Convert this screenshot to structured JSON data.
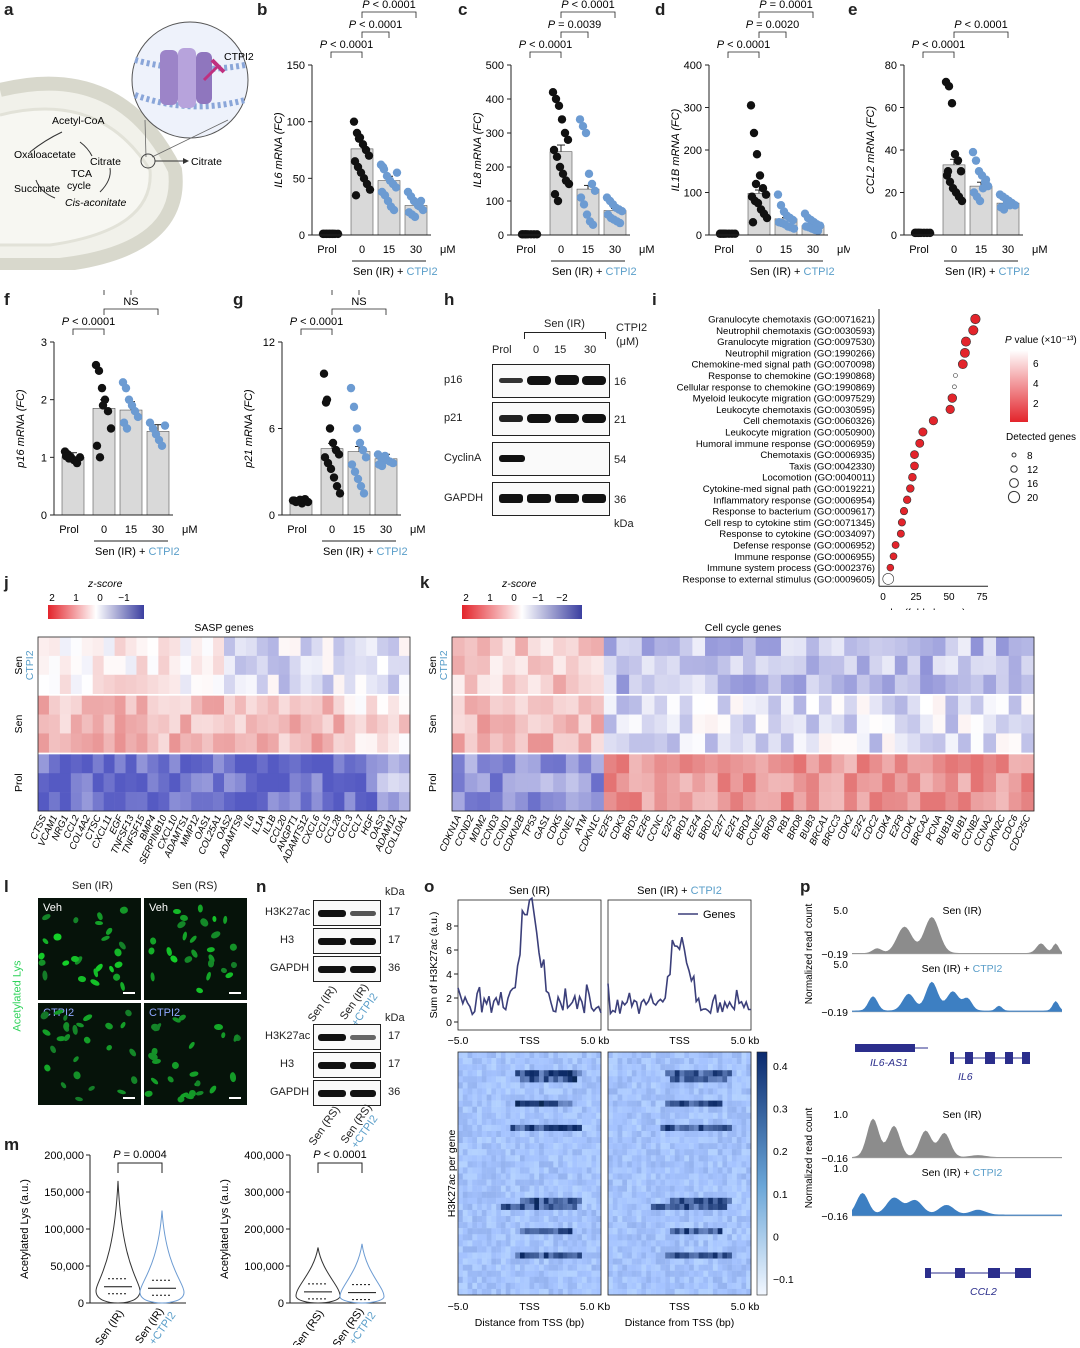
{
  "panel_labels": [
    "a",
    "b",
    "c",
    "d",
    "e",
    "f",
    "g",
    "h",
    "i",
    "j",
    "k",
    "l",
    "m",
    "n",
    "o",
    "p"
  ],
  "colors": {
    "black": "#111111",
    "blue": "#6c9bd2",
    "cyan_text": "#5a9ec9",
    "red": "#e3242b",
    "navy": "#3b3f7a",
    "green": "#2fd35a"
  },
  "panel_a": {
    "cycle_labels": [
      "Acetyl-CoA",
      "Oxaloacetate",
      "Citrate",
      "TCA",
      "cycle",
      "Succinate",
      "Cis-aconitate"
    ],
    "citrate_out": "Citrate",
    "transporter": "CTPI2"
  },
  "bar_panels": [
    {
      "id": "b",
      "ylabel": "IL6 mRNA (FC)",
      "ylim": [
        0,
        150
      ],
      "yticks": [
        "0",
        "50",
        "100",
        "150"
      ],
      "categories": [
        "Prol",
        "0",
        "15",
        "30"
      ],
      "unit": "μM",
      "group_label": "Sen (IR) +",
      "group_label_blue": "CTPI2",
      "pvals": [
        {
          "text": "P < 0.0001",
          "from": 0,
          "to": 1,
          "level": 0
        },
        {
          "text": "P < 0.0001",
          "from": 1,
          "to": 2,
          "level": 1
        },
        {
          "text": "P < 0.0001",
          "from": 1,
          "to": 3,
          "level": 2
        }
      ],
      "values": [
        1,
        76,
        48,
        26
      ],
      "points": [
        [
          1,
          1,
          1,
          1,
          1,
          1,
          1,
          1,
          1,
          1
        ],
        [
          100,
          90,
          86,
          80,
          75,
          70,
          65,
          60,
          55,
          50,
          45,
          40,
          35,
          85
        ],
        [
          62,
          58,
          52,
          48,
          45,
          42,
          38,
          35,
          30,
          25,
          22,
          55,
          60
        ],
        [
          38,
          34,
          30,
          28,
          25,
          22,
          20,
          18,
          16,
          26,
          30
        ]
      ]
    },
    {
      "id": "c",
      "ylabel": "IL8 mRNA (FC)",
      "ylim": [
        0,
        500
      ],
      "yticks": [
        "0",
        "100",
        "200",
        "300",
        "400",
        "500"
      ],
      "categories": [
        "Prol",
        "0",
        "15",
        "30"
      ],
      "unit": "μM",
      "group_label": "Sen (IR) +",
      "group_label_blue": "CTPI2",
      "pvals": [
        {
          "text": "P < 0.0001",
          "from": 0,
          "to": 1,
          "level": 0
        },
        {
          "text": "P = 0.0039",
          "from": 1,
          "to": 2,
          "level": 1
        },
        {
          "text": "P < 0.0001",
          "from": 1,
          "to": 3,
          "level": 2
        }
      ],
      "values": [
        2,
        245,
        135,
        72
      ],
      "points": [
        [
          2,
          2,
          2,
          2,
          2,
          2,
          2,
          2
        ],
        [
          420,
          400,
          380,
          340,
          300,
          280,
          250,
          230,
          200,
          180,
          160,
          150,
          120,
          100
        ],
        [
          340,
          320,
          300,
          180,
          150,
          130,
          110,
          90,
          60,
          40,
          30
        ],
        [
          110,
          100,
          90,
          80,
          75,
          70,
          60,
          50,
          45,
          40,
          35
        ]
      ]
    },
    {
      "id": "d",
      "ylabel": "IL1B mRNA (FC)",
      "ylim": [
        0,
        400
      ],
      "yticks": [
        "0",
        "100",
        "200",
        "300",
        "400"
      ],
      "categories": [
        "Prol",
        "0",
        "15",
        "30"
      ],
      "unit": "μM",
      "group_label": "Sen (IR) +",
      "group_label_blue": "CTPI2",
      "pvals": [
        {
          "text": "P < 0.0001",
          "from": 0,
          "to": 1,
          "level": 0
        },
        {
          "text": "P = 0.0020",
          "from": 1,
          "to": 2,
          "level": 1
        },
        {
          "text": "P = 0.0001",
          "from": 1,
          "to": 3,
          "level": 2
        }
      ],
      "values": [
        3,
        98,
        38,
        22
      ],
      "points": [
        [
          3,
          3,
          3,
          3,
          3,
          3,
          3,
          3
        ],
        [
          305,
          240,
          190,
          140,
          110,
          95,
          90,
          80,
          75,
          60,
          50,
          40,
          30,
          120
        ],
        [
          95,
          70,
          55,
          45,
          40,
          35,
          30,
          28,
          25,
          20,
          18,
          15
        ],
        [
          50,
          40,
          35,
          30,
          25,
          22,
          20,
          18,
          15,
          12,
          10
        ]
      ]
    },
    {
      "id": "e",
      "ylabel": "CCL2 mRNA (FC)",
      "ylim": [
        0,
        80
      ],
      "yticks": [
        "0",
        "20",
        "40",
        "60",
        "80"
      ],
      "categories": [
        "Prol",
        "0",
        "15",
        "30"
      ],
      "unit": "μM",
      "group_label": "Sen (IR) +",
      "group_label_blue": "CTPI2",
      "pvals": [
        {
          "text": "P < 0.0001",
          "from": 0,
          "to": 1,
          "level": 0
        },
        {
          "text": "P < 0.0001",
          "from": 1,
          "to": 3,
          "level": 1
        }
      ],
      "values": [
        1,
        33,
        23,
        15
      ],
      "points": [
        [
          1,
          1,
          1,
          1,
          1,
          1,
          1,
          1
        ],
        [
          72,
          70,
          62,
          38,
          35,
          30,
          28,
          25,
          22,
          20,
          18,
          16,
          30
        ],
        [
          39,
          35,
          30,
          28,
          25,
          23,
          20,
          18,
          16,
          22,
          26
        ],
        [
          19,
          18,
          17,
          16,
          15,
          14,
          13,
          12,
          15,
          14
        ]
      ]
    },
    {
      "id": "f",
      "ylabel": "p16 mRNA (FC)",
      "ylim": [
        0,
        3
      ],
      "yticks": [
        "0",
        "1",
        "2",
        "3"
      ],
      "categories": [
        "Prol",
        "0",
        "15",
        "30"
      ],
      "unit": "μM",
      "group_label": "Sen (IR) +",
      "group_label_blue": "CTPI2",
      "pvals": [
        {
          "text": "NS",
          "from": 1,
          "to": 2,
          "level": 2
        },
        {
          "text": "P < 0.0001",
          "from": 0,
          "to": 1,
          "level": 0
        },
        {
          "text": "NS",
          "from": 1,
          "to": 3,
          "level": 1
        }
      ],
      "values": [
        1.0,
        1.85,
        1.82,
        1.45
      ],
      "points": [
        [
          1.1,
          1.05,
          1.0,
          0.95,
          0.9,
          1.0,
          1.02,
          0.98
        ],
        [
          2.6,
          2.5,
          2.2,
          2.0,
          1.8,
          1.5,
          1.2,
          1.0,
          1.9
        ],
        [
          2.3,
          2.2,
          2.0,
          1.9,
          1.8,
          1.7,
          1.6,
          1.5
        ],
        [
          1.6,
          1.5,
          1.4,
          1.3,
          1.2,
          1.55
        ]
      ]
    },
    {
      "id": "g",
      "ylabel": "p21 mRNA (FC)",
      "ylim": [
        0,
        12
      ],
      "yticks": [
        "0",
        "6",
        "12"
      ],
      "categories": [
        "Prol",
        "0",
        "15",
        "30"
      ],
      "unit": "μM",
      "group_label": "Sen (IR) +",
      "group_label_blue": "CTPI2",
      "pvals": [
        {
          "text": "NS",
          "from": 1,
          "to": 2,
          "level": 2
        },
        {
          "text": "P < 0.0001",
          "from": 0,
          "to": 1,
          "level": 0
        },
        {
          "text": "NS",
          "from": 1,
          "to": 3,
          "level": 1
        }
      ],
      "values": [
        1.0,
        4.6,
        4.4,
        3.9
      ],
      "points": [
        [
          1.0,
          0.9,
          1.0,
          0.8,
          1.1,
          0.9,
          1.0,
          0.95,
          1.05
        ],
        [
          9.8,
          8.0,
          6.0,
          5.0,
          4.5,
          4.2,
          4.0,
          3.6,
          3.2,
          2.6,
          2.0,
          1.5,
          7.8
        ],
        [
          8.8,
          7.5,
          6.0,
          5.0,
          4.5,
          4.0,
          3.5,
          3.0,
          2.5,
          2.0,
          1.5
        ],
        [
          4.2,
          4.0,
          3.9,
          3.8,
          3.7,
          3.6,
          3.5,
          3.4,
          4.1
        ]
      ]
    }
  ],
  "panel_h": {
    "header": "Sen (IR)",
    "cols": [
      "Prol",
      "0",
      "15",
      "30"
    ],
    "corner": "CTPI2",
    "corner_unit": "(μM)",
    "rows": [
      {
        "name": "p16",
        "kda": "16"
      },
      {
        "name": "p21",
        "kda": "21"
      },
      {
        "name": "CyclinA",
        "kda": "54"
      },
      {
        "name": "GAPDH",
        "kda": "36"
      }
    ],
    "kda_label": "kDa"
  },
  "panel_i": {
    "xlabel": "log(fold change)",
    "xticks": [
      "0",
      "25",
      "50",
      "75"
    ],
    "legend_color_title": "P value (×10⁻¹³)",
    "legend_color_ticks": [
      "6",
      "4",
      "2"
    ],
    "legend_size_title": "Detected genes",
    "legend_size_ticks": [
      "8",
      "12",
      "16",
      "20"
    ],
    "terms": [
      {
        "label": "Granulocyte chemotaxis (GO:0071621)",
        "x": 88,
        "p": 1.5
      },
      {
        "label": "Neutrophil chemotaxis (GO:0030593)",
        "x": 86,
        "p": 1.5
      },
      {
        "label": "Granulocyte migration (GO:0097530)",
        "x": 79,
        "p": 2.0
      },
      {
        "label": "Neutrophil migration (GO:1990266)",
        "x": 78,
        "p": 2.0
      },
      {
        "label": "Chemokine-med signal path (GO:0070098)",
        "x": 76,
        "p": 1.5
      },
      {
        "label": "Response to chemokine (GO:1990868)",
        "x": 69,
        "p": 6
      },
      {
        "label": "Cellular response to chemokine (GO:1990869)",
        "x": 68,
        "p": 6
      },
      {
        "label": "Myeloid leukocyte migration (GO:0097529)",
        "x": 66,
        "p": 2.0
      },
      {
        "label": "Leukocyte chemotaxis (GO:0030595)",
        "x": 64,
        "p": 1.5
      },
      {
        "label": "Cell chemotaxis (GO:0060326)",
        "x": 48,
        "p": 1.5
      },
      {
        "label": "Leukocyte migration (GO:0050900)",
        "x": 38,
        "p": 1.5
      },
      {
        "label": "Humoral immune response (GO:0006959)",
        "x": 35,
        "p": 1.5
      },
      {
        "label": "Chemotaxis (GO:0006935)",
        "x": 30,
        "p": 1.5
      },
      {
        "label": "Taxis (GO:0042330)",
        "x": 30,
        "p": 1.5
      },
      {
        "label": "Locomotion (GO:0040011)",
        "x": 28,
        "p": 1.5
      },
      {
        "label": "Cytokine-med signal path (GO:0019221)",
        "x": 26,
        "p": 1.5
      },
      {
        "label": "Inflammatory response (GO:0006954)",
        "x": 23,
        "p": 1.5
      },
      {
        "label": "Response to bacterium (GO:0009617)",
        "x": 20,
        "p": 1.5
      },
      {
        "label": "Cell resp to cytokine stim (GO:0071345)",
        "x": 18,
        "p": 1.5
      },
      {
        "label": "Response to cytokine (GO:0034097)",
        "x": 17,
        "p": 1.5
      },
      {
        "label": "Defense response (GO:0006952)",
        "x": 12,
        "p": 1.5
      },
      {
        "label": "Immune response (GO:0006955)",
        "x": 10,
        "p": 1.5
      },
      {
        "label": "Immune system process (GO:0002376)",
        "x": 7,
        "p": 1.5
      },
      {
        "label": "Response to external stimulus (GO:0009605)",
        "x": 5,
        "p": 7
      }
    ]
  },
  "panel_j": {
    "title": "SASP genes",
    "legend_title": "z-score",
    "legend_ticks": [
      "2",
      "1",
      "0",
      "−1"
    ],
    "rows": [
      {
        "label": "Sen",
        "label2": "CTPI2"
      },
      {
        "label": "Sen"
      },
      {
        "label": "Prol"
      }
    ],
    "genes": [
      "CTSS",
      "VCAM1",
      "NRG1",
      "CCL2",
      "COL4A2",
      "CTSC",
      "CXCL11",
      "EGF",
      "TNFSF13",
      "TNFSF15",
      "BMP4",
      "SERPINB10",
      "CXCL10",
      "ADAMTS1",
      "MMP12",
      "OAS1",
      "COL25A1",
      "OAS2",
      "ADAMTS9",
      "IL6",
      "IL1A",
      "IL1B",
      "CCL20",
      "ANGPT1",
      "ADAMTS12",
      "CXCL6",
      "CCL5",
      "CCL28",
      "CCL3",
      "CCL7",
      "HGF",
      "OAS3",
      "ADAM12",
      "COL10A1"
    ]
  },
  "panel_k": {
    "title": "Cell cycle genes",
    "legend_title": "z-score",
    "legend_ticks": [
      "2",
      "1",
      "0",
      "−1",
      "−2"
    ],
    "rows": [
      {
        "label": "Sen",
        "label2": "CTPI2"
      },
      {
        "label": "Sen"
      },
      {
        "label": "Prol"
      }
    ],
    "genes": [
      "CDKN1A",
      "CCND2",
      "MDM2",
      "CCND3",
      "CCND1",
      "CDKN2B",
      "TP53",
      "GAS1",
      "CDK5",
      "CCNE1",
      "ATM",
      "CDKN1C",
      "E2F5",
      "CDK3",
      "BRD3",
      "E2F6",
      "CCNC",
      "E2F3",
      "BRD1",
      "E2F4",
      "BRD7",
      "E2F7",
      "E2F1",
      "BRD4",
      "CCNE2",
      "BRD9",
      "RB1",
      "BRD8",
      "BUB3",
      "BRCA1",
      "BRCC3",
      "CDK2",
      "E2F2",
      "CDC2",
      "CDK4",
      "E2F8",
      "CDK1",
      "BRCA2",
      "PCNA",
      "BUB1B",
      "BUB1",
      "CCNB2",
      "CCNA2",
      "CDKN2C",
      "CDC6",
      "CDC25C"
    ]
  },
  "panel_l": {
    "col_titles": [
      "Sen (IR)",
      "Sen (RS)"
    ],
    "tile_labels": [
      "Veh",
      "Veh",
      "CTPI2",
      "CTPI2"
    ],
    "ylabel": "Acetylated Lys"
  },
  "panel_m": {
    "plots": [
      {
        "ylabel": "Acetylated Lys (a.u.)",
        "yticks": [
          "0",
          "50,000",
          "100,000",
          "150,000",
          "200,000"
        ],
        "ylim": [
          0,
          200000
        ],
        "pval": "P = 0.0004",
        "x1": "Sen (IR)",
        "x2_top": "Sen (IR)",
        "x2_blue": "+CTPI2",
        "medians": [
          22000,
          20000
        ]
      },
      {
        "ylabel": "Acetylated Lys (a.u.)",
        "yticks": [
          "0",
          "100,000",
          "200,000",
          "300,000",
          "400,000"
        ],
        "ylim": [
          0,
          400000
        ],
        "pval": "P < 0.0001",
        "x1": "Sen (RS)",
        "x2_top": "Sen (RS)",
        "x2_blue": "+CTPI2",
        "medians": [
          30000,
          28000
        ]
      }
    ]
  },
  "panel_n": {
    "kda": "kDa",
    "blot1": [
      {
        "name": "H3K27ac",
        "kda": "17"
      },
      {
        "name": "H3",
        "kda": "17"
      },
      {
        "name": "GAPDH",
        "kda": "36"
      }
    ],
    "cols1": [
      "Sen (IR)",
      "Sen (IR)",
      "+CTPI2"
    ],
    "blot2": [
      {
        "name": "H3K27ac",
        "kda": "17"
      },
      {
        "name": "H3",
        "kda": "17"
      },
      {
        "name": "GAPDH",
        "kda": "36"
      }
    ],
    "cols2": [
      "Sen (RS)",
      "Sen (RS)",
      "+CTPI2"
    ]
  },
  "panel_o": {
    "titles": [
      "Sen (IR)",
      "Sen (IR) + ",
      "CTPI2"
    ],
    "legend": "Genes",
    "ylabel_top": "Sum of H3K27ac (a.u.)",
    "yticks_top": [
      "0",
      "2",
      "4",
      "6",
      "8"
    ],
    "xticks_top": [
      "−5.0",
      "TSS",
      "5.0 kb",
      "TSS",
      "5.0 kb"
    ],
    "ylabel_heat": "H3K27ac per gene",
    "xticks_bottom": [
      "−5.0",
      "TSS",
      "5.0 Kb",
      "TSS",
      "5.0 kb"
    ],
    "xlabel": "Distance from TSS (bp)",
    "cbar_ticks": [
      "0.4",
      "0.3",
      "0.2",
      "0.1",
      "0",
      "−0.1"
    ]
  },
  "panel_p": {
    "track1": {
      "ymax": "5.0",
      "ymin": "−0.19",
      "ylabel": "Normalized read count",
      "t1": "Sen (IR)",
      "t2": "Sen (IR) + ",
      "t2b": "CTPI2",
      "genes": [
        "IL6-AS1",
        "IL6"
      ]
    },
    "track2": {
      "ymax": "1.0",
      "ymin": "−0.16",
      "ylabel": "Normalized read count",
      "t1": "Sen (IR)",
      "t2": "Sen (IR) + ",
      "t2b": "CTPI2",
      "genes": [
        "CCL2"
      ]
    }
  }
}
